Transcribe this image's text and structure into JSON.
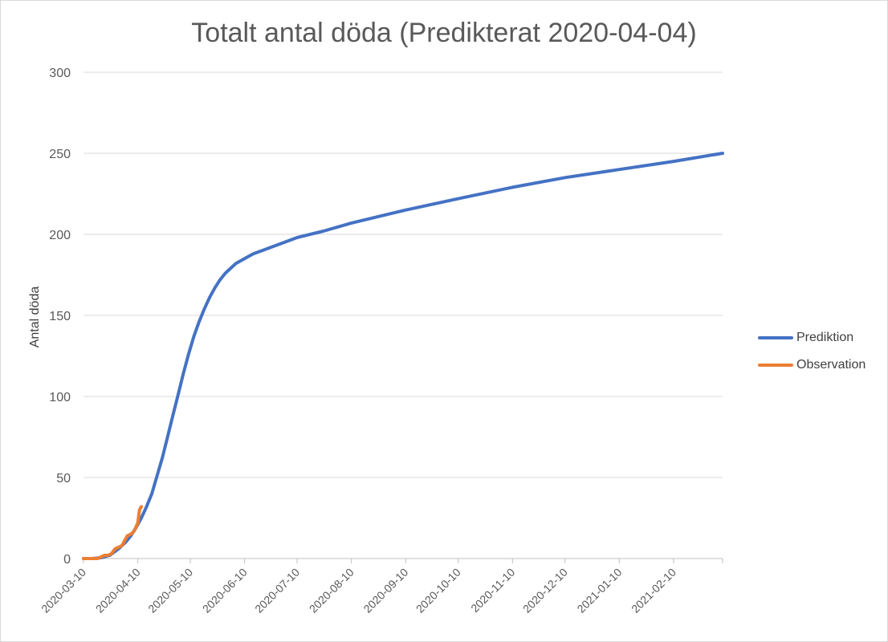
{
  "chart_data": {
    "type": "line",
    "title": "Totalt antal döda (Predikterat 2020-04-04)",
    "xlabel": "",
    "ylabel": "Antal döda",
    "ylim": [
      0,
      300
    ],
    "yticks": [
      0,
      50,
      100,
      150,
      200,
      250,
      300
    ],
    "xlim": [
      "2020-03-10",
      "2021-03-10"
    ],
    "xtick_labels": [
      "2020-03-10",
      "2020-04-10",
      "2020-05-10",
      "2020-06-10",
      "2020-07-10",
      "2020-08-10",
      "2020-09-10",
      "2020-10-10",
      "2020-11-10",
      "2020-12-10",
      "2021-01-10",
      "2021-02-10"
    ],
    "grid": "horizontal",
    "legend_position": "right",
    "series": [
      {
        "name": "Prediktion",
        "color": "#4472C4",
        "x": [
          "2020-03-10",
          "2020-03-15",
          "2020-03-20",
          "2020-03-25",
          "2020-03-30",
          "2020-04-03",
          "2020-04-06",
          "2020-04-09",
          "2020-04-12",
          "2020-04-15",
          "2020-04-18",
          "2020-04-21",
          "2020-04-24",
          "2020-04-27",
          "2020-04-30",
          "2020-05-03",
          "2020-05-06",
          "2020-05-09",
          "2020-05-12",
          "2020-05-15",
          "2020-05-18",
          "2020-05-21",
          "2020-05-24",
          "2020-05-27",
          "2020-05-30",
          "2020-06-02",
          "2020-06-05",
          "2020-06-10",
          "2020-06-15",
          "2020-06-20",
          "2020-06-30",
          "2020-07-10",
          "2020-07-25",
          "2020-08-10",
          "2020-09-10",
          "2020-10-10",
          "2020-11-10",
          "2020-12-10",
          "2021-01-10",
          "2021-02-10",
          "2021-03-10"
        ],
        "values": [
          0,
          0,
          0.5,
          2,
          6,
          10,
          14,
          19,
          25,
          32,
          40,
          51,
          62,
          75,
          88,
          101,
          114,
          126,
          137,
          146,
          154,
          161,
          167,
          172,
          176,
          179,
          182,
          185,
          188,
          190,
          194,
          198,
          202,
          207,
          215,
          222,
          229,
          235,
          240,
          245,
          250
        ]
      },
      {
        "name": "Observation",
        "color": "#ED7D31",
        "x": [
          "2020-03-10",
          "2020-03-13",
          "2020-03-16",
          "2020-03-18",
          "2020-03-20",
          "2020-03-22",
          "2020-03-24",
          "2020-03-26",
          "2020-03-28",
          "2020-03-30",
          "2020-04-01",
          "2020-04-03",
          "2020-04-04",
          "2020-04-06",
          "2020-04-08",
          "2020-04-10",
          "2020-04-11",
          "2020-04-12"
        ],
        "values": [
          0,
          0,
          0,
          0,
          1,
          2,
          2,
          3,
          6,
          7,
          8,
          12,
          14,
          15,
          17,
          22,
          30,
          32
        ]
      }
    ]
  }
}
